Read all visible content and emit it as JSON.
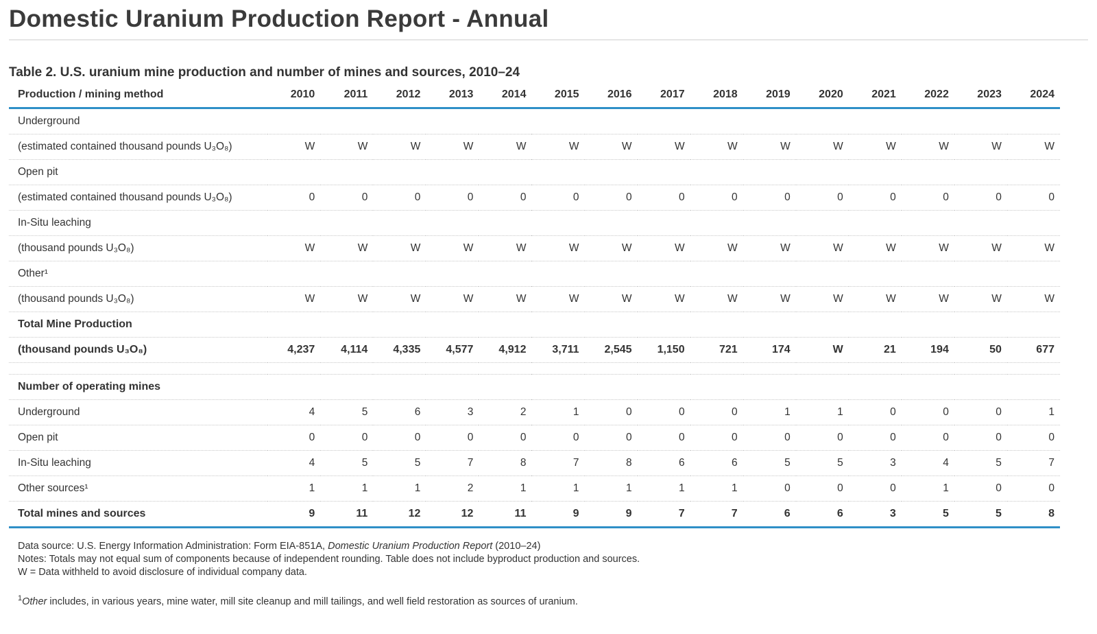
{
  "page": {
    "title": "Domestic Uranium Production Report - Annual"
  },
  "table": {
    "caption": "Table 2. U.S. uranium mine production and number of mines and sources, 2010–24",
    "header": {
      "label": "Production / mining method",
      "years": [
        "2010",
        "2011",
        "2012",
        "2013",
        "2014",
        "2015",
        "2016",
        "2017",
        "2018",
        "2019",
        "2020",
        "2021",
        "2022",
        "2023",
        "2024"
      ]
    },
    "rows": [
      {
        "label": "Underground",
        "values": []
      },
      {
        "label": "(estimated contained thousand pounds U₃O₈)",
        "values": [
          "W",
          "W",
          "W",
          "W",
          "W",
          "W",
          "W",
          "W",
          "W",
          "W",
          "W",
          "W",
          "W",
          "W",
          "W"
        ]
      },
      {
        "label": "Open pit",
        "values": []
      },
      {
        "label": "(estimated contained thousand pounds U₃O₈)",
        "values": [
          "0",
          "0",
          "0",
          "0",
          "0",
          "0",
          "0",
          "0",
          "0",
          "0",
          "0",
          "0",
          "0",
          "0",
          "0"
        ]
      },
      {
        "label": "In-Situ leaching",
        "values": []
      },
      {
        "label": "(thousand pounds U₃O₈)",
        "values": [
          "W",
          "W",
          "W",
          "W",
          "W",
          "W",
          "W",
          "W",
          "W",
          "W",
          "W",
          "W",
          "W",
          "W",
          "W"
        ]
      },
      {
        "label": "Other¹",
        "values": []
      },
      {
        "label": "(thousand pounds U₃O₈)",
        "values": [
          "W",
          "W",
          "W",
          "W",
          "W",
          "W",
          "W",
          "W",
          "W",
          "W",
          "W",
          "W",
          "W",
          "W",
          "W"
        ]
      },
      {
        "label": "Total Mine Production",
        "values": [],
        "bold": true
      },
      {
        "label": "(thousand pounds U₃O₈)",
        "values": [
          "4,237",
          "4,114",
          "4,335",
          "4,577",
          "4,912",
          "3,711",
          "2,545",
          "1,150",
          "721",
          "174",
          "W",
          "21",
          "194",
          "50",
          "677"
        ],
        "bold": true
      },
      {
        "label": "",
        "values": [],
        "spacer": true
      },
      {
        "label": "Number of operating mines",
        "values": [],
        "bold": true
      },
      {
        "label": "Underground",
        "values": [
          "4",
          "5",
          "6",
          "3",
          "2",
          "1",
          "0",
          "0",
          "0",
          "1",
          "1",
          "0",
          "0",
          "0",
          "1"
        ]
      },
      {
        "label": "Open pit",
        "values": [
          "0",
          "0",
          "0",
          "0",
          "0",
          "0",
          "0",
          "0",
          "0",
          "0",
          "0",
          "0",
          "0",
          "0",
          "0"
        ]
      },
      {
        "label": "In-Situ leaching",
        "values": [
          "4",
          "5",
          "5",
          "7",
          "8",
          "7",
          "8",
          "6",
          "6",
          "5",
          "5",
          "3",
          "4",
          "5",
          "7"
        ]
      },
      {
        "label": "Other sources¹",
        "values": [
          "1",
          "1",
          "1",
          "2",
          "1",
          "1",
          "1",
          "1",
          "1",
          "0",
          "0",
          "0",
          "1",
          "0",
          "0"
        ]
      },
      {
        "label": "Total mines and sources",
        "values": [
          "9",
          "11",
          "12",
          "12",
          "11",
          "9",
          "9",
          "7",
          "7",
          "6",
          "6",
          "3",
          "5",
          "5",
          "8"
        ],
        "bold": true,
        "total": true
      }
    ]
  },
  "footer": {
    "source": {
      "prefix": "Data source: U.S. Energy Information Administration: Form EIA-851A, ",
      "italic": "Domestic Uranium Production Report",
      "suffix": " (2010–24)"
    },
    "notes": "Notes: Totals may not equal sum of components because of independent rounding. Table does not include byproduct production and sources.",
    "withheld": "W = Data withheld to avoid disclosure of individual company data.",
    "footnote": {
      "marker": "1",
      "italic": "Other",
      "text": " includes, in various years, mine water, mill site cleanup and mill tailings, and well field restoration as sources of uranium."
    }
  },
  "colors": {
    "accent_blue": "#2e8fc7",
    "rule_gray": "#e5e5e5",
    "dotted_gray": "#c7c7c7",
    "text": "#333333"
  }
}
